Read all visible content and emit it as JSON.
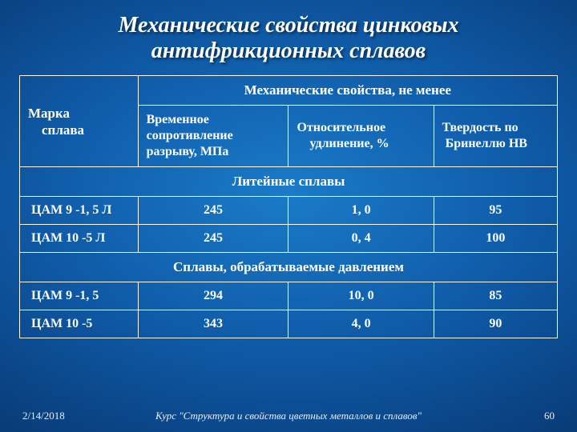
{
  "title_l1": "Механические свойства цинковых",
  "title_l2": "антифрикционных сплавов",
  "header_group": "Механические свойства, не менее",
  "col_brand_l1": "Марка",
  "col_brand_l2": "сплава",
  "col1_l1": "Временное",
  "col1_l2": "сопротивление",
  "col1_l3": "разрыву, МПа",
  "col2_l1": "Относительное",
  "col2_l2": "удлинение, %",
  "col3_l1": "Твердость по",
  "col3_l2": "Бринеллю HB",
  "section1": "Литейные сплавы",
  "section2": "Сплавы, обрабатываемые давлением",
  "rows1": [
    {
      "brand": "ЦАМ 9 -1, 5 Л",
      "v1": "245",
      "v2": "1, 0",
      "v3": "95"
    },
    {
      "brand": "ЦАМ 10 -5 Л",
      "v1": "245",
      "v2": "0, 4",
      "v3": "100"
    }
  ],
  "rows2": [
    {
      "brand": "ЦАМ 9 -1, 5",
      "v1": "294",
      "v2": "10, 0",
      "v3": "85"
    },
    {
      "brand": "ЦАМ 10 -5",
      "v1": "343",
      "v2": "4, 0",
      "v3": "90"
    }
  ],
  "footer_date": "2/14/2018",
  "footer_course": "Курс \"Структура и свойства цветных металлов и сплавов\"",
  "footer_page": "60"
}
